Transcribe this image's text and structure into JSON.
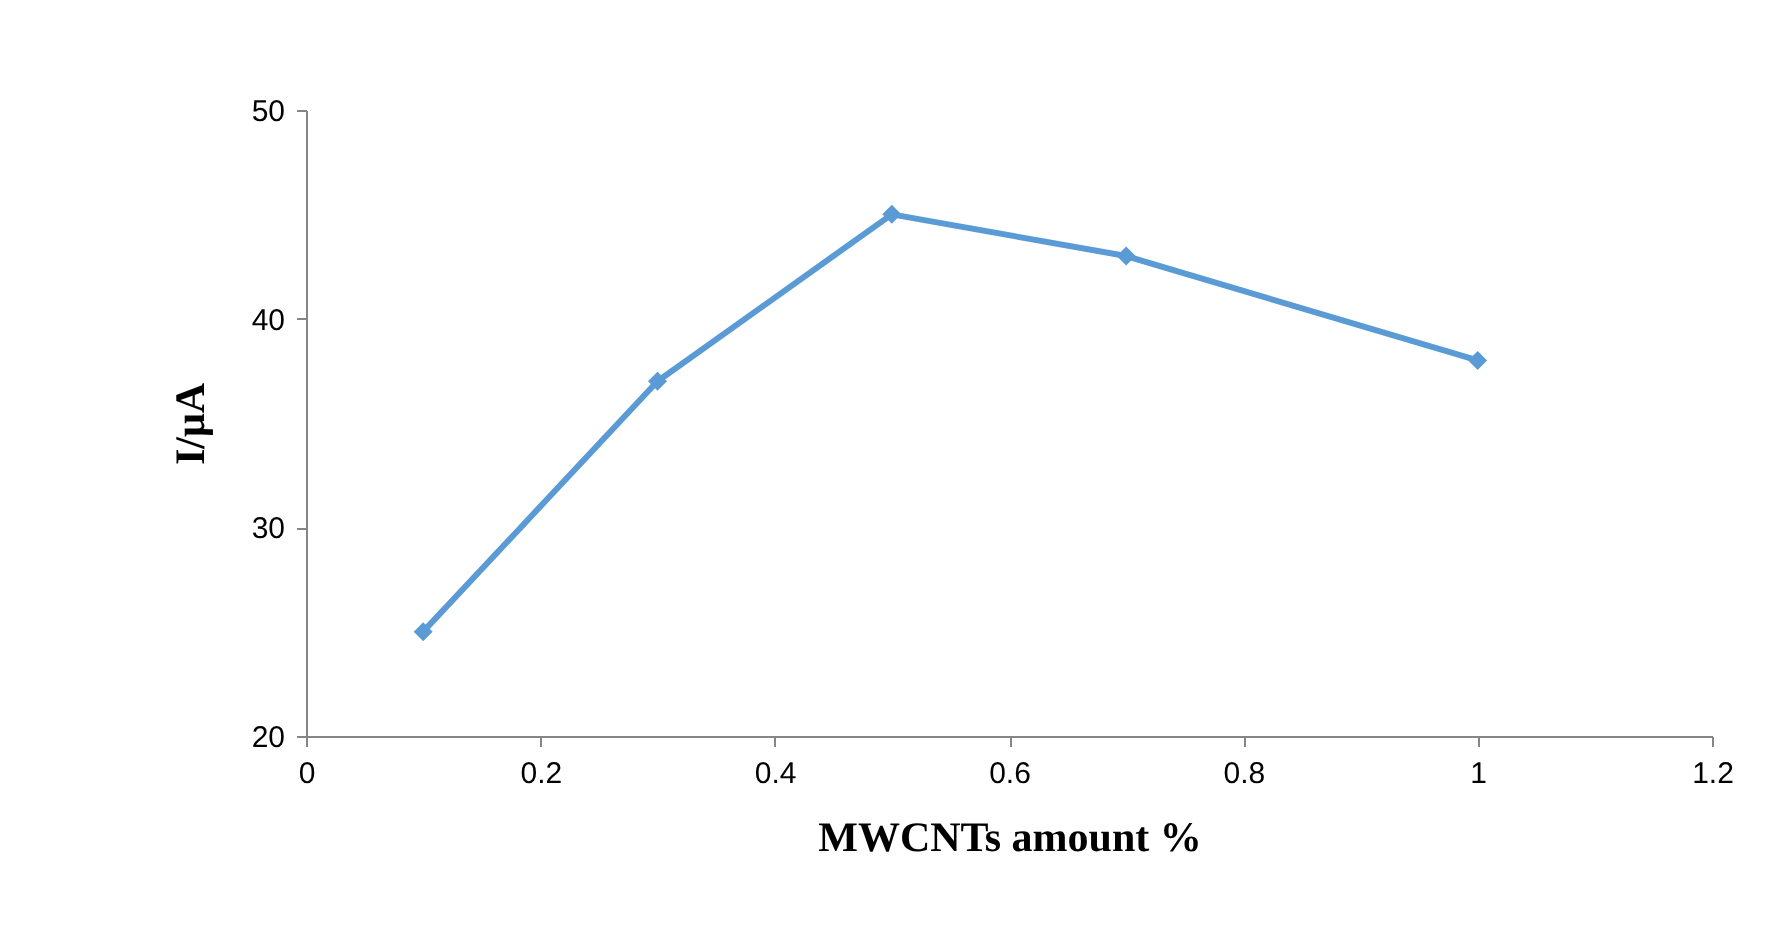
{
  "chart_data": {
    "type": "line",
    "xlabel": "MWCNTs amount %",
    "ylabel": "I/μA",
    "x": [
      0.1,
      0.3,
      0.5,
      0.7,
      1
    ],
    "series": [
      {
        "color": "#5b9bd5",
        "values": [
          25,
          37,
          45,
          43,
          38
        ]
      }
    ],
    "xlim": [
      0,
      1.2
    ],
    "xticks": [
      0,
      0.2,
      0.4,
      0.6,
      0.8,
      1,
      1.2
    ],
    "ylim": [
      20,
      50
    ],
    "yticks": [
      20,
      30,
      40,
      50
    ],
    "grid": false,
    "marker": "diamond",
    "line_style": "solid"
  }
}
